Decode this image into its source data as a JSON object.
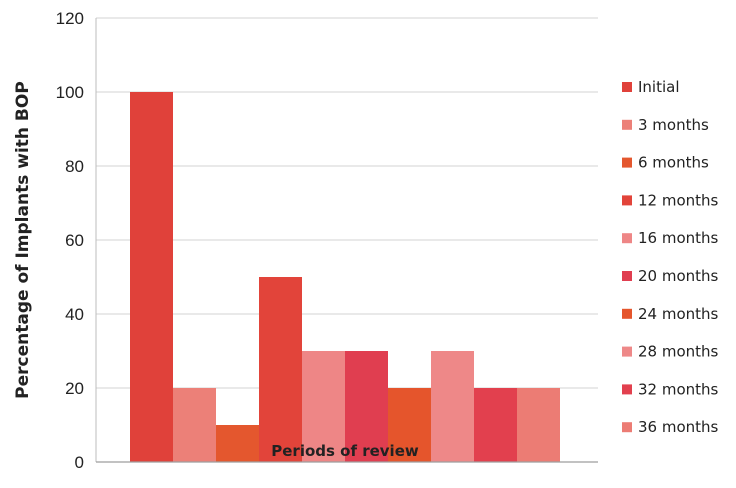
{
  "chart_data": {
    "type": "bar",
    "xlabel": "Periods of review",
    "ylabel": "Percentage of  Implants with BOP",
    "ylim": [
      0,
      120
    ],
    "yticks": [
      0,
      20,
      40,
      60,
      80,
      100,
      120
    ],
    "grid": true,
    "legend_position": "right",
    "series": [
      {
        "name": "Initial",
        "values": [
          100
        ],
        "color": "#e0413a"
      },
      {
        "name": "3 months",
        "values": [
          20
        ],
        "color": "#ec8078"
      },
      {
        "name": "6 months",
        "values": [
          10
        ],
        "color": "#e4572e"
      },
      {
        "name": "12 months",
        "values": [
          50
        ],
        "color": "#e2443a"
      },
      {
        "name": "16 months",
        "values": [
          30
        ],
        "color": "#ee8686"
      },
      {
        "name": "20 months",
        "values": [
          30
        ],
        "color": "#e03e50"
      },
      {
        "name": "24 months",
        "values": [
          20
        ],
        "color": "#e5552c"
      },
      {
        "name": "28 months",
        "values": [
          30
        ],
        "color": "#ee8888"
      },
      {
        "name": "32 months",
        "values": [
          20
        ],
        "color": "#e2404e"
      },
      {
        "name": "36 months",
        "values": [
          20
        ],
        "color": "#ec7c74"
      }
    ]
  }
}
